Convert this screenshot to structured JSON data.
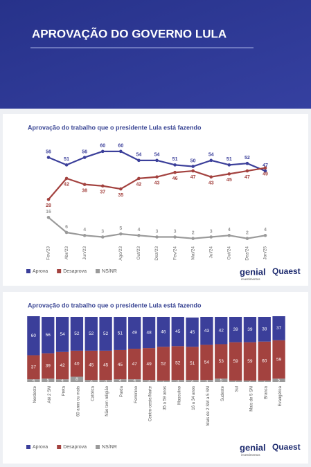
{
  "header": {
    "title": "APROVAÇÃO DO GOVERNO LULA"
  },
  "branding": {
    "brand1": "genial",
    "brand1_sub": "investimentos",
    "brand2": "Quaest"
  },
  "chart_data": [
    {
      "type": "line",
      "title": "Aprovação do trabalho que o presidente Lula está fazendo",
      "categories": [
        "Fev/23",
        "Abr/23",
        "Jun/23",
        null,
        "Ago/23",
        "Out/23",
        "Dez/23",
        "Fev/24",
        "Mai/24",
        "Jul/24",
        "Out/24",
        "Dez/24",
        "Jan/25"
      ],
      "series": [
        {
          "name": "Aprova",
          "color": "#3b3f9a",
          "values": [
            56,
            51,
            56,
            60,
            60,
            54,
            54,
            51,
            50,
            54,
            51,
            52,
            47
          ]
        },
        {
          "name": "Desaprova",
          "color": "#a3423f",
          "values": [
            28,
            42,
            38,
            37,
            35,
            42,
            43,
            46,
            47,
            43,
            45,
            47,
            49
          ]
        },
        {
          "name": "NS/NR",
          "color": "#9a9a9a",
          "values": [
            16,
            6,
            4,
            3,
            5,
            4,
            3,
            3,
            2,
            3,
            4,
            2,
            4
          ]
        }
      ],
      "ylim": [
        0,
        65
      ]
    },
    {
      "type": "bar",
      "stacked": true,
      "title": "Aprovação do trabalho que o presidente Lula está fazendo",
      "categories": [
        "Nordeste",
        "Até 2 SM",
        "Preta",
        "60 anos ou mais",
        "Católica",
        "Não tem religião",
        "Parda",
        "Feminino",
        "Centro-oeste/Norte",
        "35 a 59 anos",
        "Masculino",
        "16 a 34 anos",
        "Mais de 2 SM a 5 SM",
        "Sudeste",
        "Sul",
        "Mais de 5 SM",
        "Branca",
        "Evangélica"
      ],
      "series": [
        {
          "name": "Aprova",
          "color": "#3b3f9a",
          "values": [
            60,
            56,
            54,
            52,
            52,
            52,
            51,
            49,
            48,
            46,
            45,
            45,
            43,
            42,
            39,
            39,
            38,
            37
          ]
        },
        {
          "name": "Desaprova",
          "color": "#a3423f",
          "values": [
            37,
            39,
            42,
            40,
            45,
            45,
            45,
            47,
            49,
            52,
            52,
            51,
            54,
            53,
            59,
            59,
            60,
            59
          ]
        },
        {
          "name": "NS/NR",
          "color": "#9a9a9a",
          "values": [
            4,
            5,
            4,
            8,
            3,
            3,
            4,
            4,
            3,
            2,
            3,
            3,
            3,
            5,
            2,
            2,
            2,
            5
          ]
        }
      ],
      "ylim": [
        0,
        100
      ]
    }
  ]
}
